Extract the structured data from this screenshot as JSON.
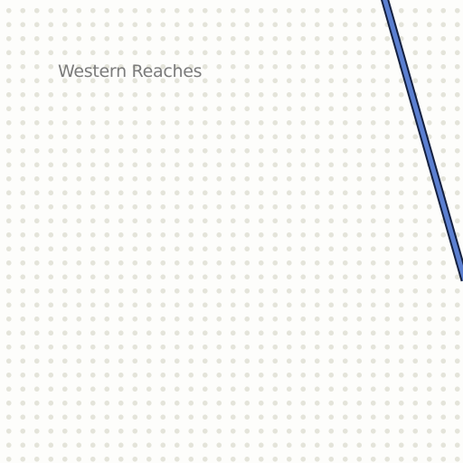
{
  "map": {
    "region_label": "Western Reaches",
    "background_color": "#fdfdfb",
    "dot_color": "#e4e4da",
    "road": {
      "fill_color": "#5b7fd0",
      "casing_color": "#142040"
    }
  }
}
